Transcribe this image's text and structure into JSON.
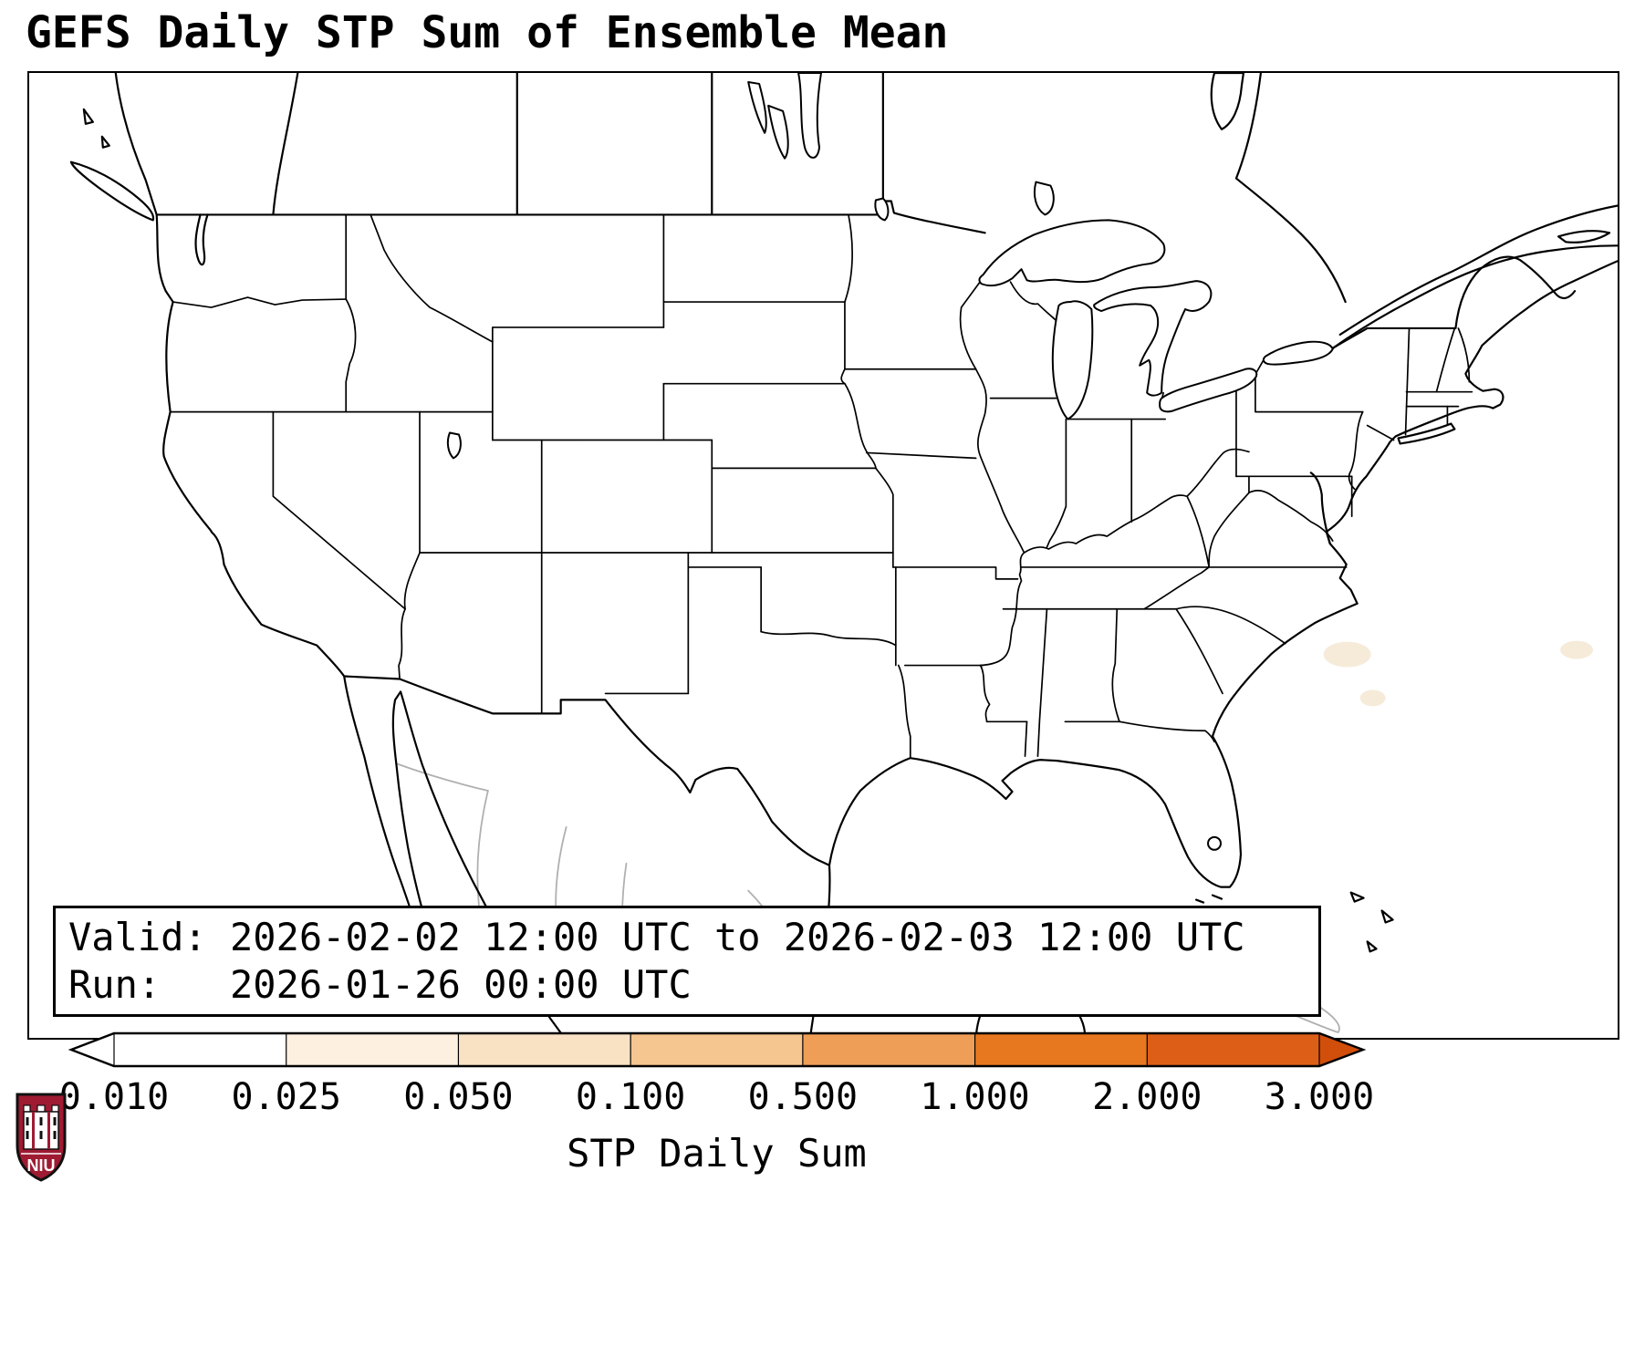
{
  "title": "GEFS Daily STP Sum of Ensemble Mean",
  "info_box": {
    "valid": "Valid: 2026-02-02 12:00 UTC to 2026-02-03 12:00 UTC",
    "run": "Run:   2026-01-26 00:00 UTC"
  },
  "colorbar": {
    "label": "STP Daily Sum",
    "ticks": [
      "0.010",
      "0.025",
      "0.050",
      "0.100",
      "0.500",
      "1.000",
      "2.000",
      "3.000"
    ],
    "segment_colors": [
      "#ffffff",
      "#fdf0e1",
      "#f9e2c3",
      "#f6c690",
      "#ef9e57",
      "#e87820",
      "#dd5f17"
    ],
    "left_arrow_color": "#ffffff",
    "right_arrow_color": "#d14e0b",
    "outline_color": "#000000"
  },
  "logo": {
    "text": "NIU",
    "shield_color": "#9e1b32"
  }
}
